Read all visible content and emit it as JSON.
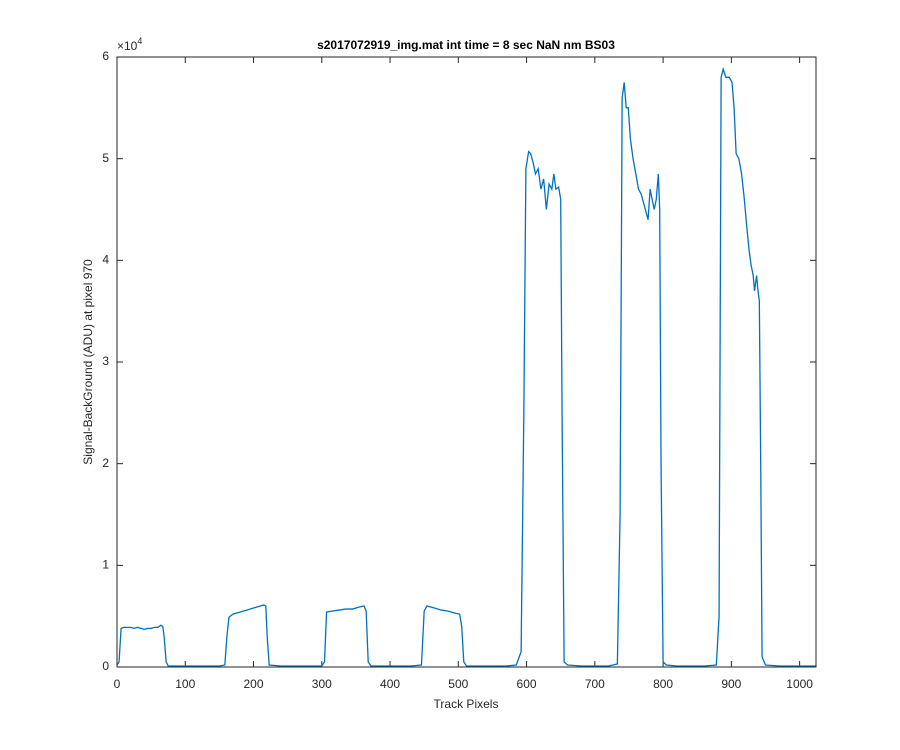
{
  "chart_data": {
    "type": "line",
    "title": "s2017072919_img.mat int time = 8 sec  NaN nm BS03",
    "x_label": "Track Pixels",
    "y_label": "Signal-BackGround (ADU) at pixel 970",
    "y_multiplier": {
      "base": "×10",
      "exponent": "4"
    },
    "xlim": [
      0,
      1024
    ],
    "xticks": [
      0,
      100,
      200,
      300,
      400,
      500,
      600,
      700,
      800,
      900,
      1000
    ],
    "ylim": [
      0,
      6
    ],
    "yticks": [
      0,
      1,
      2,
      3,
      4,
      5,
      6
    ],
    "color": "#0072bd",
    "x": [
      0,
      3,
      6,
      10,
      15,
      20,
      25,
      30,
      35,
      40,
      45,
      50,
      55,
      60,
      64,
      67,
      69,
      72,
      75,
      90,
      110,
      130,
      150,
      158,
      161,
      164,
      170,
      180,
      190,
      200,
      205,
      210,
      215,
      218,
      220,
      223,
      240,
      260,
      280,
      300,
      304,
      307,
      315,
      325,
      335,
      345,
      355,
      362,
      365,
      368,
      372,
      390,
      410,
      430,
      446,
      450,
      454,
      465,
      475,
      485,
      495,
      502,
      505,
      508,
      512,
      530,
      550,
      570,
      585,
      592,
      596,
      599,
      603,
      606,
      610,
      613,
      617,
      621,
      625,
      629,
      633,
      637,
      640,
      643,
      647,
      650,
      652,
      655,
      660,
      680,
      700,
      720,
      733,
      737,
      740,
      743,
      746,
      749,
      752,
      756,
      760,
      764,
      768,
      772,
      776,
      778,
      781,
      784,
      787,
      790,
      793,
      795,
      797,
      800,
      805,
      820,
      840,
      860,
      878,
      882,
      885,
      888,
      892,
      897,
      901,
      904,
      907,
      911,
      915,
      919,
      923,
      926,
      929,
      932,
      934,
      937,
      939,
      941,
      943,
      945,
      950,
      970,
      990,
      1010,
      1024
    ],
    "values": [
      0.02,
      0.05,
      0.38,
      0.39,
      0.39,
      0.39,
      0.38,
      0.39,
      0.38,
      0.37,
      0.38,
      0.38,
      0.39,
      0.39,
      0.41,
      0.4,
      0.3,
      0.05,
      0.01,
      0.01,
      0.01,
      0.01,
      0.01,
      0.02,
      0.3,
      0.49,
      0.52,
      0.54,
      0.56,
      0.58,
      0.59,
      0.6,
      0.61,
      0.6,
      0.3,
      0.02,
      0.01,
      0.01,
      0.01,
      0.01,
      0.05,
      0.54,
      0.55,
      0.56,
      0.57,
      0.57,
      0.59,
      0.6,
      0.55,
      0.05,
      0.01,
      0.01,
      0.01,
      0.01,
      0.02,
      0.55,
      0.6,
      0.58,
      0.56,
      0.55,
      0.53,
      0.52,
      0.4,
      0.05,
      0.01,
      0.01,
      0.01,
      0.01,
      0.02,
      0.15,
      2.5,
      4.9,
      5.07,
      5.05,
      4.95,
      4.85,
      4.9,
      4.7,
      4.8,
      4.5,
      4.75,
      4.7,
      4.85,
      4.7,
      4.72,
      4.6,
      2.5,
      0.05,
      0.02,
      0.01,
      0.01,
      0.01,
      0.03,
      1.5,
      5.6,
      5.75,
      5.5,
      5.5,
      5.2,
      5.0,
      4.85,
      4.7,
      4.65,
      4.55,
      4.45,
      4.4,
      4.7,
      4.6,
      4.5,
      4.6,
      4.85,
      4.5,
      2.0,
      0.05,
      0.02,
      0.01,
      0.01,
      0.01,
      0.02,
      0.5,
      5.8,
      5.88,
      5.8,
      5.8,
      5.75,
      5.5,
      5.05,
      5.0,
      4.85,
      4.6,
      4.3,
      4.1,
      3.95,
      3.85,
      3.7,
      3.85,
      3.7,
      3.6,
      2.0,
      0.1,
      0.02,
      0.01,
      0.01,
      0.01,
      0.01
    ]
  }
}
